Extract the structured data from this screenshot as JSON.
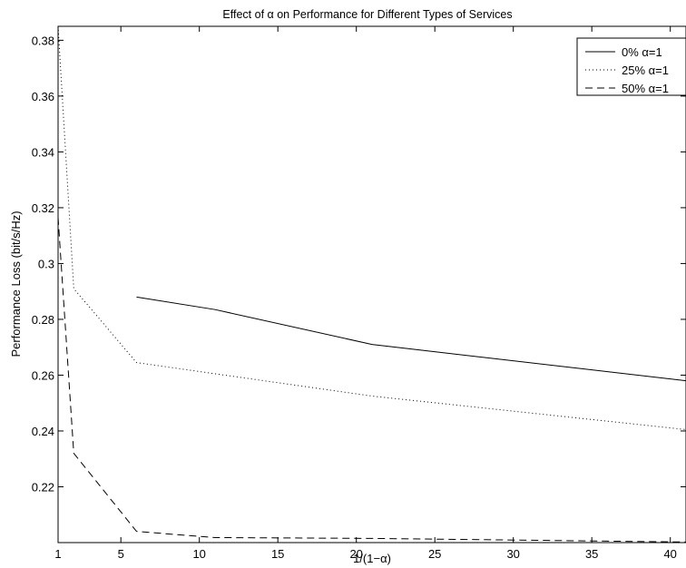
{
  "chart_data": {
    "type": "line",
    "title": "Effect of α on Performance for Different Types of Services",
    "xlabel": "1/(1−α)",
    "ylabel": "Performance Loss (bit/s/Hz)",
    "xlim": [
      1,
      41
    ],
    "ylim": [
      0.2,
      0.385
    ],
    "xticks": [
      1,
      5,
      10,
      15,
      20,
      25,
      30,
      35,
      40
    ],
    "yticks": [
      0.22,
      0.24,
      0.26,
      0.28,
      0.3,
      0.32,
      0.34,
      0.36,
      0.38
    ],
    "ytick_labels": [
      "0.22",
      "0.24",
      "0.26",
      "0.28",
      "0.3",
      "0.32",
      "0.34",
      "0.36",
      "0.38"
    ],
    "grid": false,
    "legend_position": "top-right",
    "series": [
      {
        "name": "0% α=1",
        "style": "solid",
        "x": [
          6,
          11,
          21,
          41
        ],
        "values": [
          0.288,
          0.2835,
          0.271,
          0.258
        ]
      },
      {
        "name": "25% α=1",
        "style": "dotted",
        "x": [
          1,
          2,
          6,
          11,
          21,
          41
        ],
        "values": [
          0.385,
          0.291,
          0.2645,
          0.2605,
          0.2525,
          0.2405
        ]
      },
      {
        "name": "50% α=1",
        "style": "dashed",
        "x": [
          1,
          2,
          6,
          11,
          21,
          41
        ],
        "values": [
          0.3165,
          0.232,
          0.204,
          0.2018,
          0.2015,
          0.2002
        ]
      }
    ]
  }
}
